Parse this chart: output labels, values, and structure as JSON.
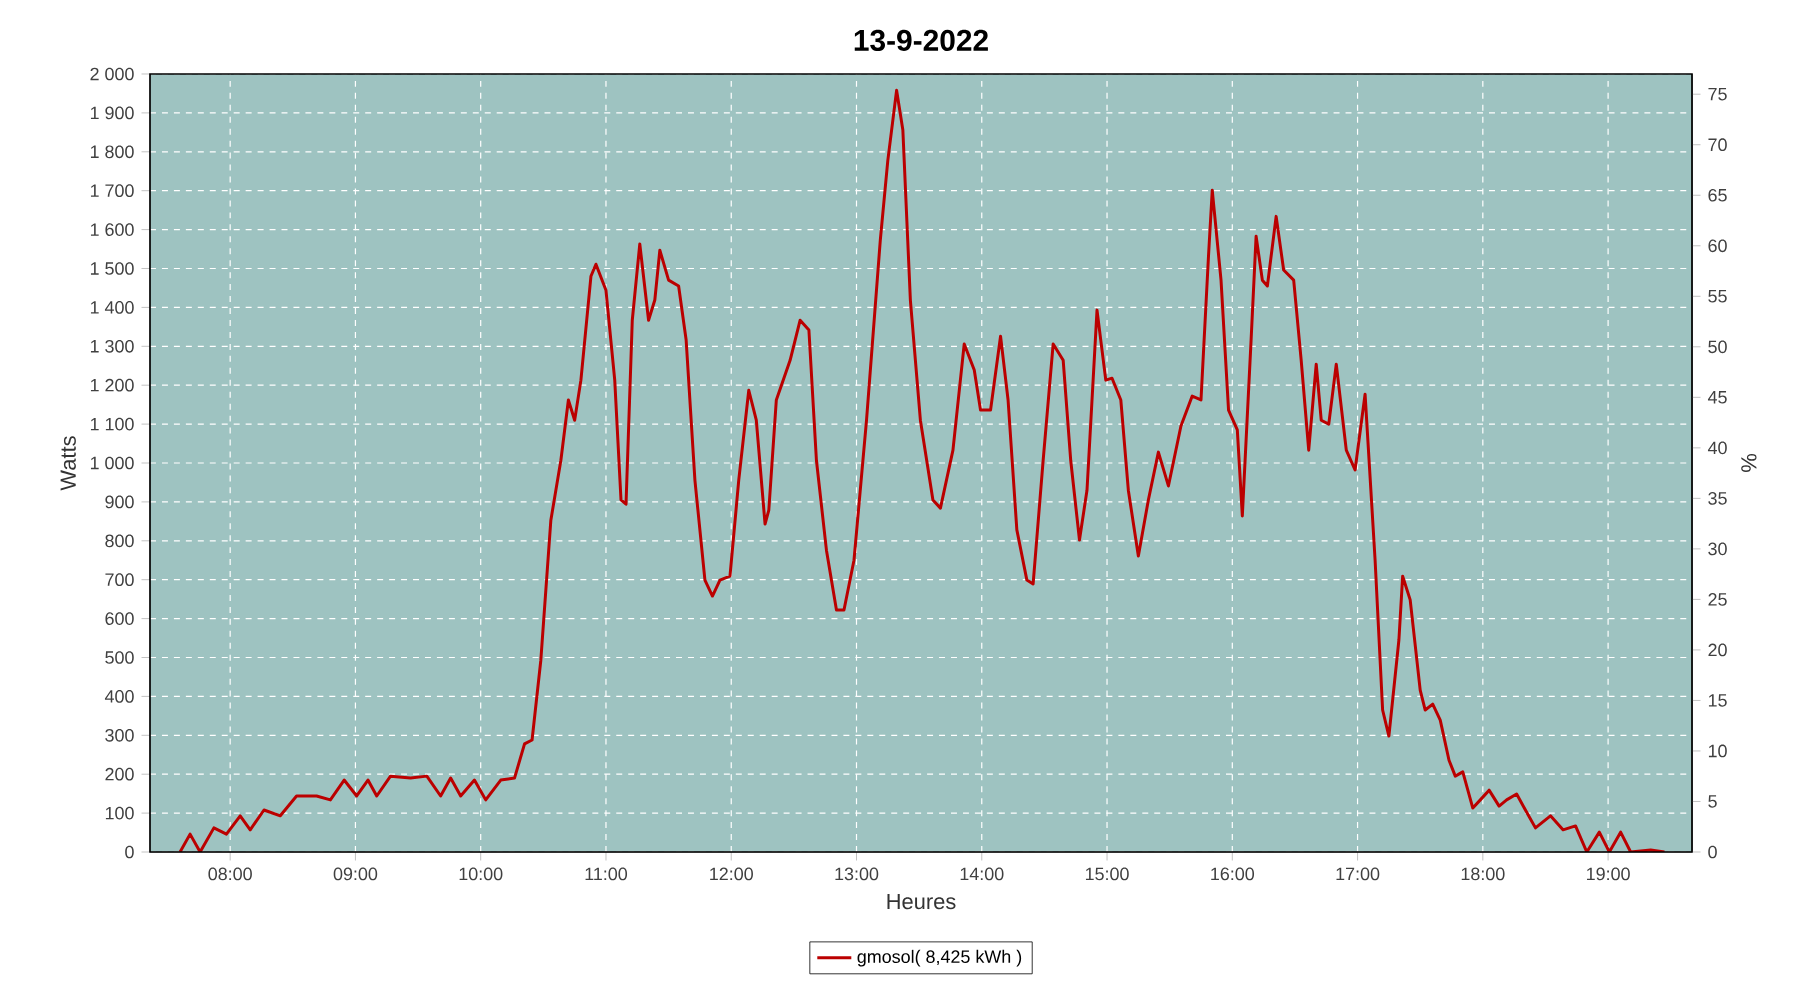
{
  "chart_data": {
    "type": "line",
    "title": "13-9-2022",
    "xlabel": "Heures",
    "ylabel": "Watts",
    "y2label": "%",
    "x": [
      7.6,
      7.68,
      7.76,
      7.87,
      7.97,
      8.08,
      8.16,
      8.27,
      8.4,
      8.53,
      8.69,
      8.8,
      8.91,
      9.01,
      9.1,
      9.17,
      9.28,
      9.44,
      9.57,
      9.68,
      9.76,
      9.84,
      9.95,
      10.04,
      10.16,
      10.27,
      10.35,
      10.41,
      10.48,
      10.56,
      10.64,
      10.7,
      10.75,
      10.8,
      10.88,
      10.92,
      11.0,
      11.07,
      11.12,
      11.16,
      11.21,
      11.27,
      11.34,
      11.39,
      11.43,
      11.5,
      11.58,
      11.64,
      11.71,
      11.79,
      11.85,
      11.91,
      11.99,
      12.06,
      12.14,
      12.2,
      12.27,
      12.3,
      12.36,
      12.47,
      12.55,
      12.62,
      12.68,
      12.76,
      12.84,
      12.9,
      12.98,
      13.08,
      13.19,
      13.25,
      13.32,
      13.37,
      13.43,
      13.51,
      13.61,
      13.67,
      13.77,
      13.86,
      13.94,
      13.99,
      14.07,
      14.15,
      14.21,
      14.28,
      14.36,
      14.41,
      14.49,
      14.57,
      14.65,
      14.71,
      14.78,
      14.84,
      14.92,
      14.99,
      15.04,
      15.11,
      15.17,
      15.25,
      15.33,
      15.41,
      15.49,
      15.59,
      15.68,
      15.75,
      15.81,
      15.84,
      15.91,
      15.97,
      16.04,
      16.08,
      16.15,
      16.19,
      16.24,
      16.28,
      16.35,
      16.41,
      16.49,
      16.55,
      16.61,
      16.67,
      16.71,
      16.77,
      16.83,
      16.91,
      16.98,
      17.06,
      17.14,
      17.2,
      17.25,
      17.33,
      17.36,
      17.42,
      17.5,
      17.54,
      17.6,
      17.66,
      17.73,
      17.78,
      17.84,
      17.92,
      17.98,
      18.05,
      18.13,
      18.19,
      18.27,
      18.34,
      18.42,
      18.54,
      18.64,
      18.74,
      18.83,
      18.93,
      19.01,
      19.1,
      19.18,
      19.34,
      19.45
    ],
    "series": [
      {
        "name": "gmosol( 8,425 kWh )",
        "color": "#bb0000",
        "values": [
          0,
          46,
          0,
          62,
          46,
          93,
          57,
          108,
          93,
          144,
          144,
          134,
          185,
          144,
          185,
          144,
          195,
          190,
          195,
          144,
          190,
          144,
          185,
          134,
          185,
          190,
          278,
          288,
          493,
          853,
          1007,
          1162,
          1110,
          1213,
          1480,
          1511,
          1444,
          1213,
          905,
          894,
          1367,
          1563,
          1367,
          1419,
          1547,
          1470,
          1455,
          1316,
          956,
          699,
          658,
          699,
          709,
          956,
          1187,
          1110,
          843,
          879,
          1162,
          1264,
          1367,
          1342,
          1007,
          776,
          622,
          622,
          750,
          1110,
          1573,
          1778,
          1958,
          1856,
          1419,
          1110,
          905,
          884,
          1033,
          1306,
          1239,
          1136,
          1136,
          1326,
          1162,
          828,
          699,
          689,
          1007,
          1306,
          1264,
          1007,
          802,
          930,
          1393,
          1213,
          1218,
          1162,
          930,
          761,
          905,
          1028,
          941,
          1095,
          1172,
          1162,
          1532,
          1701,
          1470,
          1136,
          1085,
          864,
          1316,
          1583,
          1470,
          1455,
          1634,
          1496,
          1470,
          1264,
          1033,
          1254,
          1110,
          1100,
          1254,
          1033,
          982,
          1177,
          750,
          365,
          298,
          545,
          709,
          648,
          416,
          365,
          380,
          339,
          236,
          195,
          206,
          113,
          134,
          159,
          118,
          134,
          149,
          108,
          62,
          93,
          57,
          67,
          0,
          51,
          0,
          51,
          0,
          5,
          0
        ]
      }
    ],
    "xlim": [
      7.36,
      19.67
    ],
    "xticks": [
      {
        "value": 8,
        "label": "08:00"
      },
      {
        "value": 9,
        "label": "09:00"
      },
      {
        "value": 10,
        "label": "10:00"
      },
      {
        "value": 11,
        "label": "11:00"
      },
      {
        "value": 12,
        "label": "12:00"
      },
      {
        "value": 13,
        "label": "13:00"
      },
      {
        "value": 14,
        "label": "14:00"
      },
      {
        "value": 15,
        "label": "15:00"
      },
      {
        "value": 16,
        "label": "16:00"
      },
      {
        "value": 17,
        "label": "17:00"
      },
      {
        "value": 18,
        "label": "18:00"
      },
      {
        "value": 19,
        "label": "19:00"
      }
    ],
    "ylim": [
      0,
      2000
    ],
    "yticks": [
      0,
      100,
      200,
      300,
      400,
      500,
      600,
      700,
      800,
      900,
      {
        "value": 1000,
        "label": "1 000"
      },
      {
        "value": 1100,
        "label": "1 100"
      },
      {
        "value": 1200,
        "label": "1 200"
      },
      {
        "value": 1300,
        "label": "1 300"
      },
      {
        "value": 1400,
        "label": "1 400"
      },
      {
        "value": 1500,
        "label": "1 500"
      },
      {
        "value": 1600,
        "label": "1 600"
      },
      {
        "value": 1700,
        "label": "1 700"
      },
      {
        "value": 1800,
        "label": "1 800"
      },
      {
        "value": 1900,
        "label": "1 900"
      },
      {
        "value": 2000,
        "label": "2 000"
      }
    ],
    "y2lim": [
      0,
      77
    ],
    "y2ticks": [
      0,
      5,
      10,
      15,
      20,
      25,
      30,
      35,
      40,
      45,
      50,
      55,
      60,
      65,
      70,
      75
    ],
    "grid": true,
    "legend": "bottom",
    "marker": "none",
    "line_style": "solid"
  }
}
